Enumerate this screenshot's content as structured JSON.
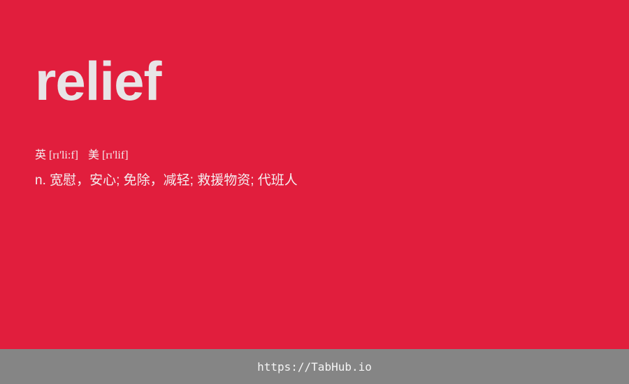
{
  "card": {
    "word": "relief",
    "phonetic_uk": "英 [rɪ'li:f]",
    "phonetic_us": "美 [rɪ'lif]",
    "definition": "n. 宽慰，安心; 免除，减轻; 救援物资; 代班人"
  },
  "footer": {
    "link": "https://TabHub.io"
  },
  "colors": {
    "background": "#e11e3d",
    "footer": "#858585",
    "text": "#e8e4e6"
  }
}
